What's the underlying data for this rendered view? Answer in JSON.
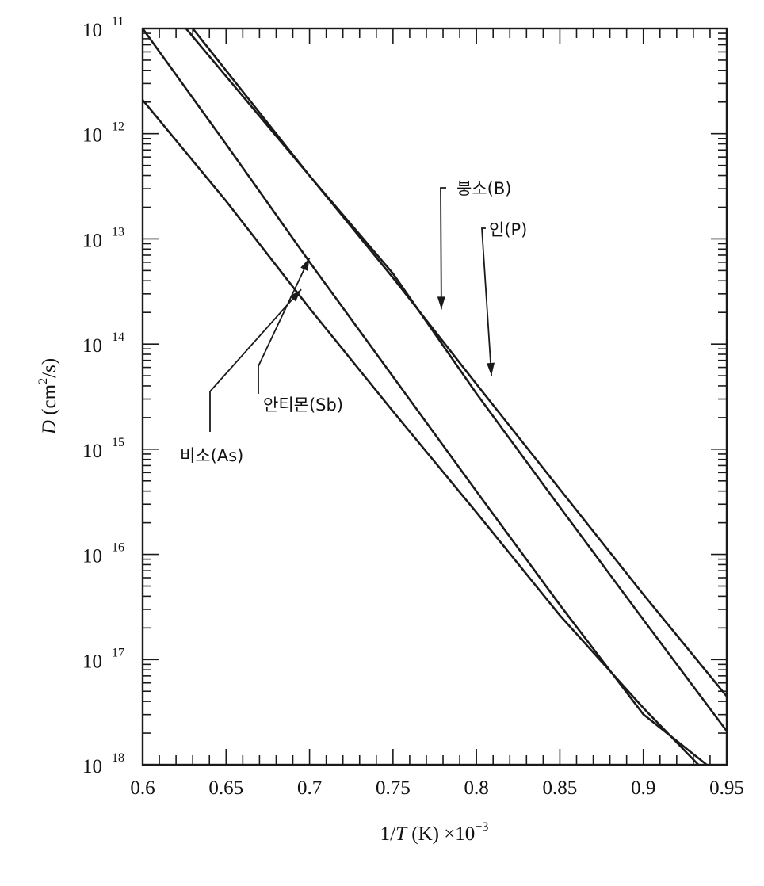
{
  "chart_data": {
    "type": "line",
    "title": "",
    "xlabel": {
      "prefix": "1/",
      "var": "T",
      "suffix": " (K) ×10",
      "exp": "−3"
    },
    "ylabel": {
      "var": "D",
      "unit": " (cm",
      "unit_exp": "2",
      "unit_tail": "/s)"
    },
    "x_ticks": [
      "0.6",
      "0.65",
      "0.7",
      "0.75",
      "0.8",
      "0.85",
      "0.9",
      "0.95"
    ],
    "x_tick_values": [
      0.6,
      0.65,
      0.7,
      0.75,
      0.8,
      0.85,
      0.9,
      0.95
    ],
    "y_ticks": [
      {
        "base": "10",
        "exp": "11",
        "value": -11
      },
      {
        "base": "10",
        "exp": "12",
        "value": -12
      },
      {
        "base": "10",
        "exp": "13",
        "value": -13
      },
      {
        "base": "10",
        "exp": "14",
        "value": -14
      },
      {
        "base": "10",
        "exp": "15",
        "value": -15
      },
      {
        "base": "10",
        "exp": "16",
        "value": -16
      },
      {
        "base": "10",
        "exp": "17",
        "value": -17
      },
      {
        "base": "10",
        "exp": "18",
        "value": -18
      }
    ],
    "xlim": [
      0.6,
      0.95
    ],
    "ylim_log10": [
      -18,
      -11
    ],
    "y_scale": "log",
    "grid": false,
    "series": [
      {
        "name": "붕소(B)",
        "x": [
          0.626,
          0.7,
          0.75,
          0.8,
          0.85,
          0.9,
          0.95
        ],
        "log10_D": [
          -11.0,
          -12.4,
          -13.37,
          -14.38,
          -15.38,
          -16.38,
          -17.35
        ]
      },
      {
        "name": "인(P)",
        "x": [
          0.63,
          0.7,
          0.75,
          0.8,
          0.85,
          0.9,
          0.95
        ],
        "log10_D": [
          -11.0,
          -12.4,
          -13.33,
          -14.47,
          -15.55,
          -16.62,
          -17.68
        ]
      },
      {
        "name": "안티몬(Sb)",
        "x": [
          0.6,
          0.65,
          0.7,
          0.75,
          0.8,
          0.85,
          0.9,
          0.938
        ],
        "log10_D": [
          -11.0,
          -12.1,
          -13.22,
          -14.31,
          -15.4,
          -16.48,
          -17.52,
          -18.0
        ]
      },
      {
        "name": "비소(As)",
        "x": [
          0.6,
          0.65,
          0.7,
          0.75,
          0.8,
          0.85,
          0.9,
          0.933
        ],
        "log10_D": [
          -11.68,
          -12.64,
          -13.66,
          -14.64,
          -15.6,
          -16.58,
          -17.46,
          -18.0
        ]
      }
    ],
    "annotations": [
      {
        "series": "붕소(B)",
        "text": "붕소(B)",
        "points_to": [
          0.779,
          -13.67
        ]
      },
      {
        "series": "인(P)",
        "text": "인(P)",
        "points_to": [
          0.809,
          -14.3
        ]
      },
      {
        "series": "안티몬(Sb)",
        "text": "안티몬(Sb)",
        "points_to": [
          0.7,
          -13.18
        ]
      },
      {
        "series": "비소(As)",
        "text": "비소(As)",
        "points_to": [
          0.695,
          -13.48
        ]
      }
    ]
  }
}
